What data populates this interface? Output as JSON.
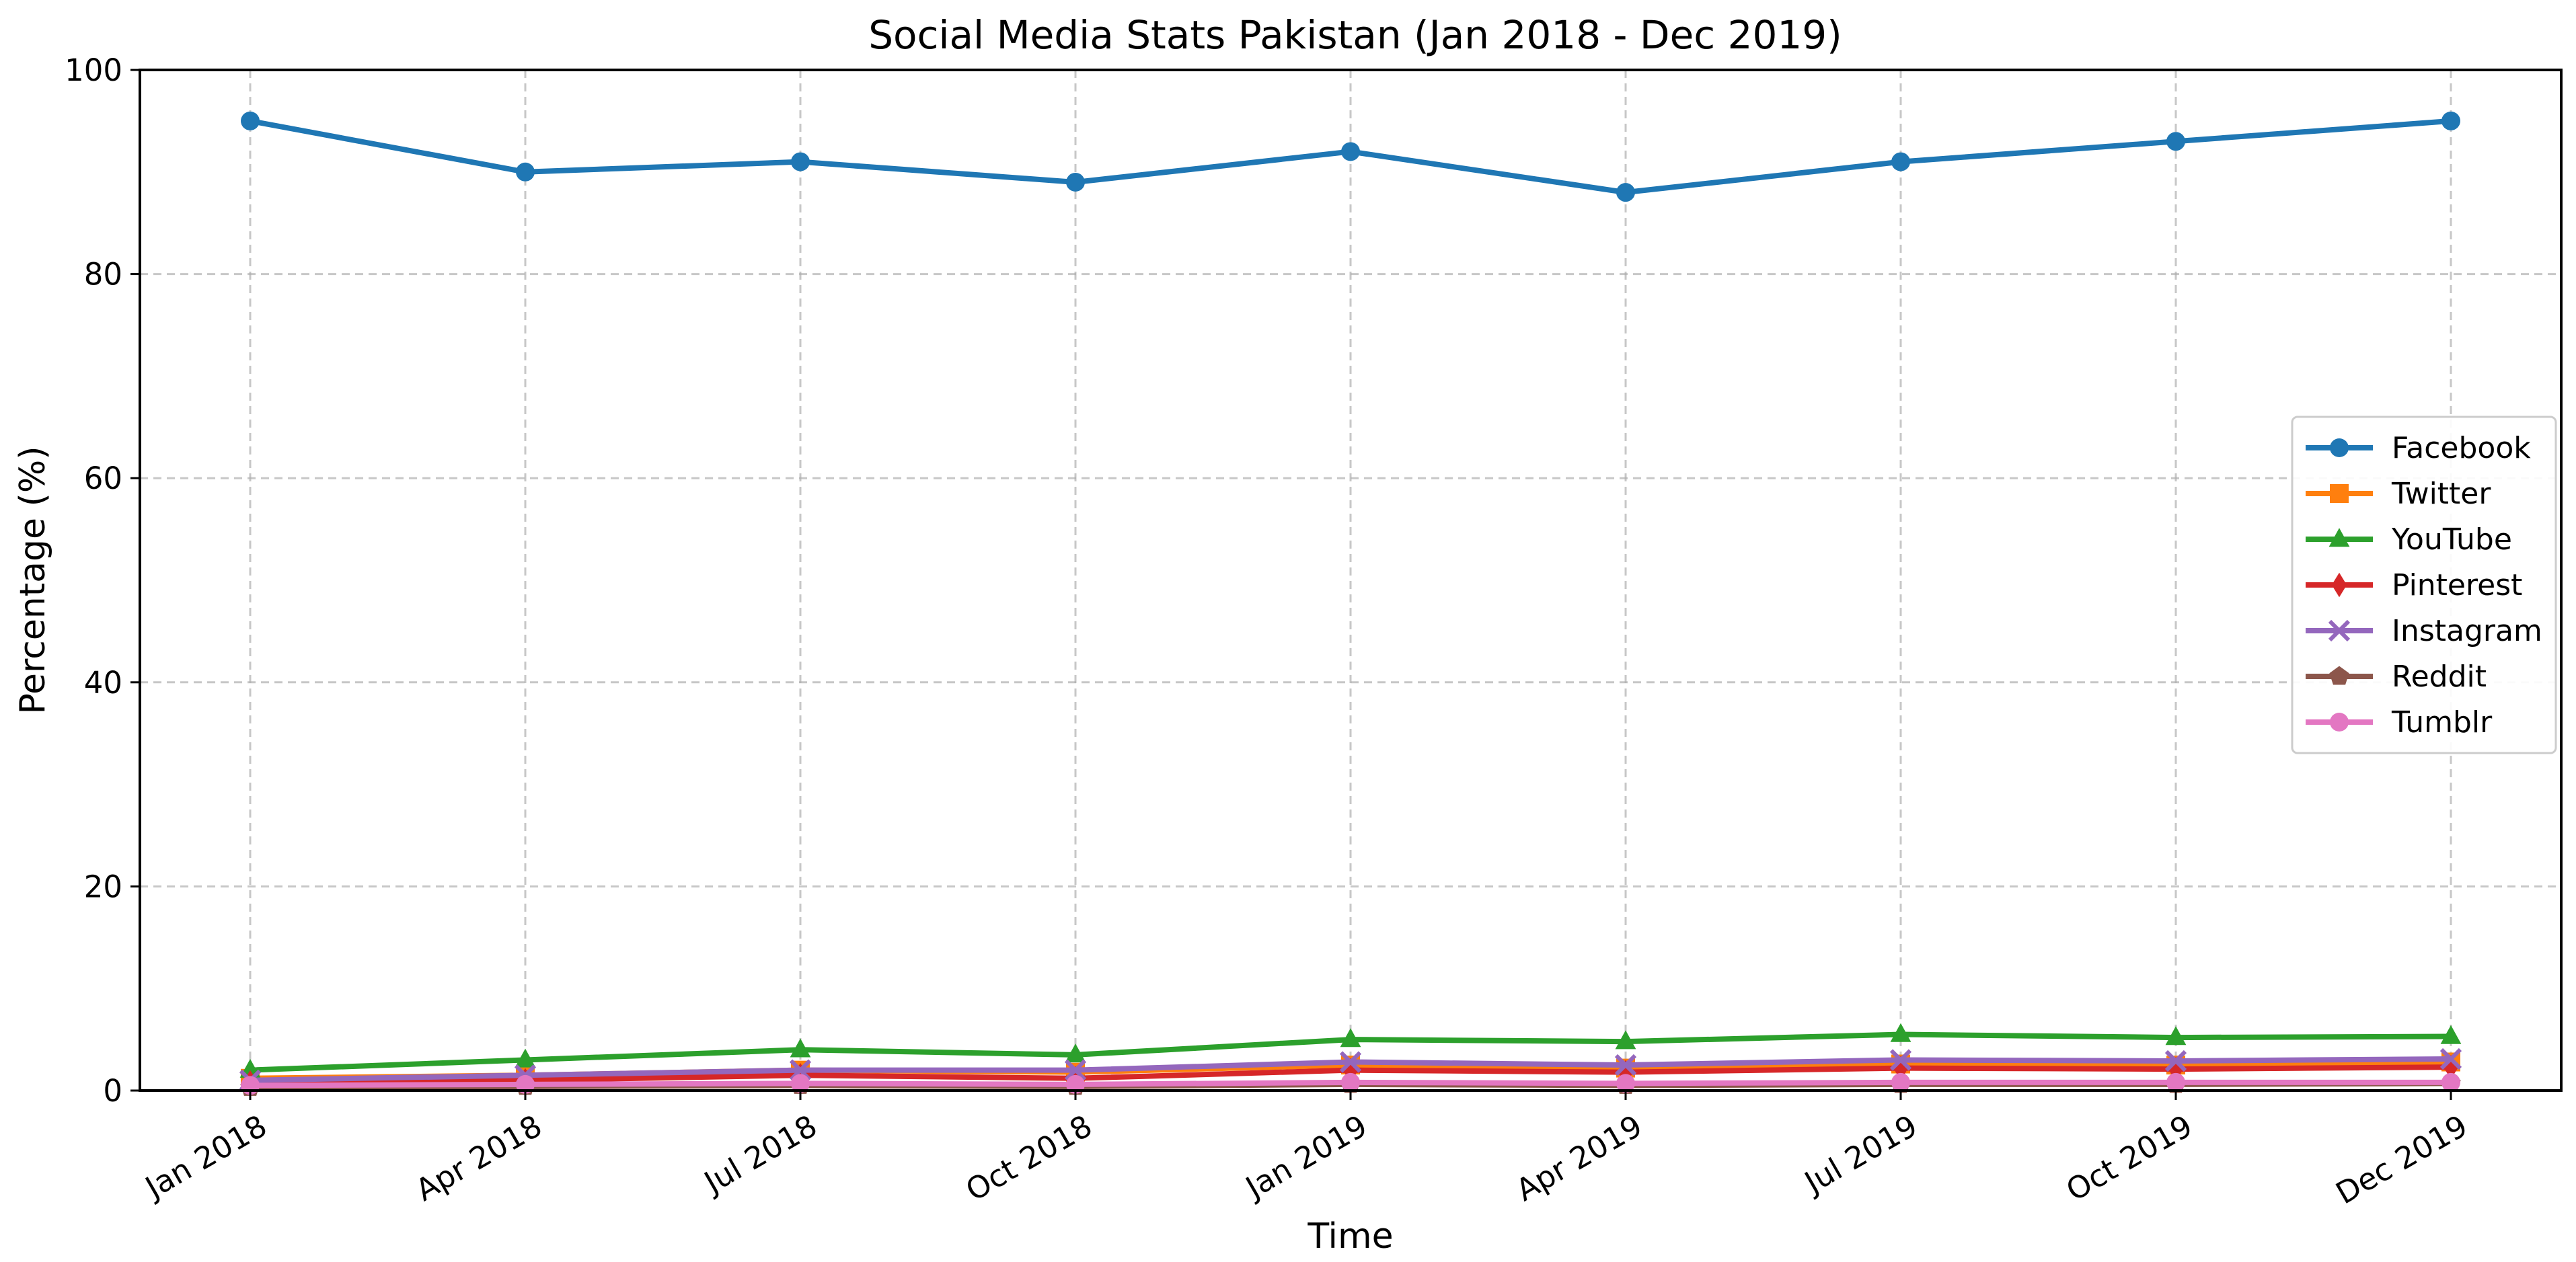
{
  "chart_data": {
    "type": "line",
    "title": "Social Media Stats Pakistan (Jan 2018 - Dec 2019)",
    "xlabel": "Time",
    "ylabel": "Percentage (%)",
    "categories": [
      "Jan 2018",
      "Apr 2018",
      "Jul 2018",
      "Oct 2018",
      "Jan 2019",
      "Apr 2019",
      "Jul 2019",
      "Oct 2019",
      "Dec 2019"
    ],
    "ylim": [
      0,
      100
    ],
    "yticks": [
      0,
      20,
      40,
      60,
      80,
      100
    ],
    "grid": true,
    "legend_position": "center-right",
    "series": [
      {
        "name": "Facebook",
        "color": "#1f77b4",
        "marker": "circle",
        "values": [
          95,
          90,
          91,
          89,
          92,
          88,
          91,
          93,
          95
        ]
      },
      {
        "name": "Twitter",
        "color": "#ff7f0e",
        "marker": "square",
        "values": [
          1.2,
          1.5,
          2.0,
          1.8,
          2.5,
          2.2,
          2.6,
          2.5,
          2.8
        ]
      },
      {
        "name": "YouTube",
        "color": "#2ca02c",
        "marker": "triangle",
        "values": [
          2.0,
          3.0,
          4.0,
          3.5,
          5.0,
          4.8,
          5.5,
          5.2,
          5.3
        ]
      },
      {
        "name": "Pinterest",
        "color": "#d62728",
        "marker": "diamond",
        "values": [
          0.8,
          1.0,
          1.5,
          1.2,
          2.0,
          1.8,
          2.2,
          2.1,
          2.3
        ]
      },
      {
        "name": "Instagram",
        "color": "#9467bd",
        "marker": "x",
        "values": [
          1.0,
          1.5,
          2.0,
          2.0,
          2.8,
          2.5,
          3.0,
          2.9,
          3.1
        ]
      },
      {
        "name": "Reddit",
        "color": "#8c564b",
        "marker": "pentagon",
        "values": [
          0.3,
          0.4,
          0.5,
          0.4,
          0.6,
          0.5,
          0.6,
          0.6,
          0.7
        ]
      },
      {
        "name": "Tumblr",
        "color": "#e377c2",
        "marker": "circle",
        "values": [
          0.5,
          0.6,
          0.7,
          0.6,
          0.8,
          0.7,
          0.8,
          0.8,
          0.8
        ]
      }
    ]
  }
}
